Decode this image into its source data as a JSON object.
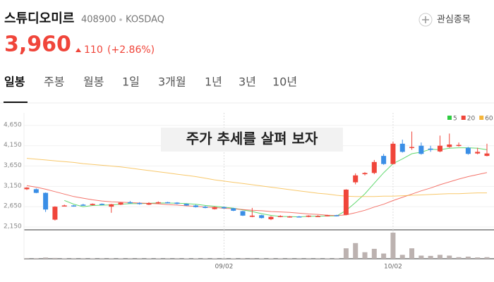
{
  "header": {
    "name": "스튜디오미르",
    "code": "408900",
    "market": "KOSDAQ",
    "watch_button": "관심종목",
    "price": "3,960",
    "change": "110",
    "change_pct": "(+2.86%)"
  },
  "tabs": [
    "일봉",
    "주봉",
    "월봉",
    "1일",
    "3개월",
    "1년",
    "3년",
    "10년"
  ],
  "selected_tab": 0,
  "overlay": "주가 추세를 살펴 보자",
  "chart_data": {
    "type": "candlestick",
    "categories": [
      null,
      null,
      null,
      null,
      null,
      null,
      null,
      null,
      null,
      null,
      null,
      null,
      null,
      null,
      null,
      null,
      null,
      null,
      null,
      null,
      null,
      "09/02",
      null,
      null,
      null,
      null,
      null,
      null,
      null,
      null,
      null,
      null,
      null,
      null,
      null,
      null,
      null,
      null,
      null,
      "10/02",
      null,
      null,
      null,
      null,
      null,
      null,
      null,
      null,
      null,
      null
    ],
    "open": [
      3080,
      3080,
      2990,
      2330,
      2670,
      2680,
      2700,
      2690,
      2720,
      2650,
      2700,
      2760,
      2740,
      2700,
      2740,
      2760,
      2750,
      2720,
      2680,
      2650,
      2590,
      2640,
      2610,
      2540,
      2400,
      2440,
      2340,
      2400,
      2390,
      2410,
      2400,
      2420,
      2420,
      2440,
      2450,
      3250,
      3450,
      3480,
      3900,
      3700,
      4200,
      4100,
      4150,
      4080,
      4010,
      4120,
      4160,
      4100,
      3960,
      3900
    ],
    "high": [
      3130,
      3100,
      3000,
      2660,
      2700,
      2690,
      2720,
      2730,
      2730,
      2720,
      2760,
      2790,
      2760,
      2760,
      2780,
      2770,
      2760,
      2730,
      2700,
      2670,
      2650,
      2650,
      2620,
      2550,
      2620,
      2450,
      2420,
      2440,
      2420,
      2420,
      2440,
      2440,
      2450,
      2450,
      3080,
      3470,
      3500,
      3800,
      3950,
      4250,
      4300,
      4500,
      4230,
      4150,
      4400,
      4450,
      4230,
      4120,
      4100,
      4200
    ],
    "low": [
      3060,
      2980,
      2520,
      2310,
      2660,
      2650,
      2670,
      2680,
      2690,
      2500,
      2690,
      2730,
      2700,
      2690,
      2720,
      2730,
      2710,
      2670,
      2630,
      2610,
      2580,
      2600,
      2540,
      2420,
      2390,
      2360,
      2320,
      2390,
      2380,
      2390,
      2390,
      2400,
      2410,
      2410,
      2440,
      3200,
      3420,
      3450,
      3680,
      3690,
      3980,
      4050,
      3930,
      4000,
      3990,
      4100,
      4130,
      3930,
      3940,
      3890
    ],
    "close": [
      3120,
      2990,
      2580,
      2650,
      2680,
      2660,
      2680,
      2720,
      2700,
      2710,
      2750,
      2740,
      2720,
      2740,
      2760,
      2740,
      2720,
      2680,
      2640,
      2620,
      2640,
      2610,
      2550,
      2430,
      2430,
      2370,
      2400,
      2420,
      2410,
      2400,
      2430,
      2420,
      2440,
      2420,
      3070,
      3420,
      3480,
      3750,
      3700,
      4200,
      4000,
      4120,
      3950,
      4050,
      4150,
      4180,
      4170,
      3950,
      4000,
      3960
    ],
    "volume": [
      25,
      20,
      45,
      30,
      12,
      10,
      10,
      12,
      10,
      18,
      12,
      10,
      10,
      12,
      12,
      10,
      10,
      14,
      15,
      12,
      12,
      10,
      15,
      20,
      25,
      15,
      15,
      12,
      10,
      10,
      10,
      10,
      12,
      12,
      400,
      600,
      250,
      380,
      200,
      1000,
      150,
      400,
      120,
      110,
      150,
      120,
      60,
      80,
      50,
      60
    ],
    "up_color": "#f0453a",
    "down_color": "#3a8ee6",
    "volume_color": "#bcb2b0",
    "ma": [
      {
        "name": "5",
        "color": "#2ecc40",
        "values": [
          null,
          null,
          null,
          null,
          2804,
          2712,
          2650,
          2678,
          2688,
          2694,
          2712,
          2724,
          2724,
          2732,
          2742,
          2740,
          2736,
          2728,
          2708,
          2680,
          2660,
          2638,
          2612,
          2570,
          2532,
          2478,
          2436,
          2410,
          2406,
          2400,
          2412,
          2416,
          2420,
          2422,
          2556,
          2754,
          2966,
          3228,
          3484,
          3710,
          3826,
          3954,
          3994,
          4064,
          4054,
          4090,
          4100,
          4100,
          4090,
          4052
        ]
      },
      {
        "name": "20",
        "color": "#f0453a",
        "values": [
          3170,
          3130,
          3080,
          3020,
          2960,
          2900,
          2860,
          2820,
          2790,
          2770,
          2760,
          2750,
          2740,
          2730,
          2720,
          2700,
          2690,
          2670,
          2660,
          2640,
          2630,
          2610,
          2600,
          2580,
          2560,
          2550,
          2530,
          2520,
          2510,
          2490,
          2470,
          2460,
          2440,
          2430,
          2450,
          2500,
          2560,
          2640,
          2710,
          2800,
          2880,
          2960,
          3040,
          3110,
          3190,
          3260,
          3330,
          3390,
          3440,
          3490
        ]
      },
      {
        "name": "60",
        "color": "#f5b53a",
        "values": [
          3840,
          3820,
          3800,
          3780,
          3760,
          3740,
          3710,
          3690,
          3670,
          3650,
          3630,
          3600,
          3570,
          3540,
          3510,
          3480,
          3450,
          3420,
          3390,
          3350,
          3310,
          3280,
          3250,
          3220,
          3190,
          3160,
          3130,
          3100,
          3070,
          3040,
          3010,
          2980,
          2960,
          2930,
          2910,
          2900,
          2900,
          2900,
          2910,
          2910,
          2920,
          2930,
          2940,
          2950,
          2960,
          2970,
          2970,
          2980,
          2990,
          2990
        ]
      }
    ],
    "ylim": [
      2080,
      5100
    ],
    "yticks": [
      {
        "value": 2150,
        "label": "2,150"
      },
      {
        "value": 2650,
        "label": "2,650"
      },
      {
        "value": 3150,
        "label": "3,150"
      },
      {
        "value": 3650,
        "label": "3,650"
      },
      {
        "value": 4150,
        "label": "4,150"
      },
      {
        "value": 4650,
        "label": "4,650"
      }
    ],
    "grid": true
  }
}
